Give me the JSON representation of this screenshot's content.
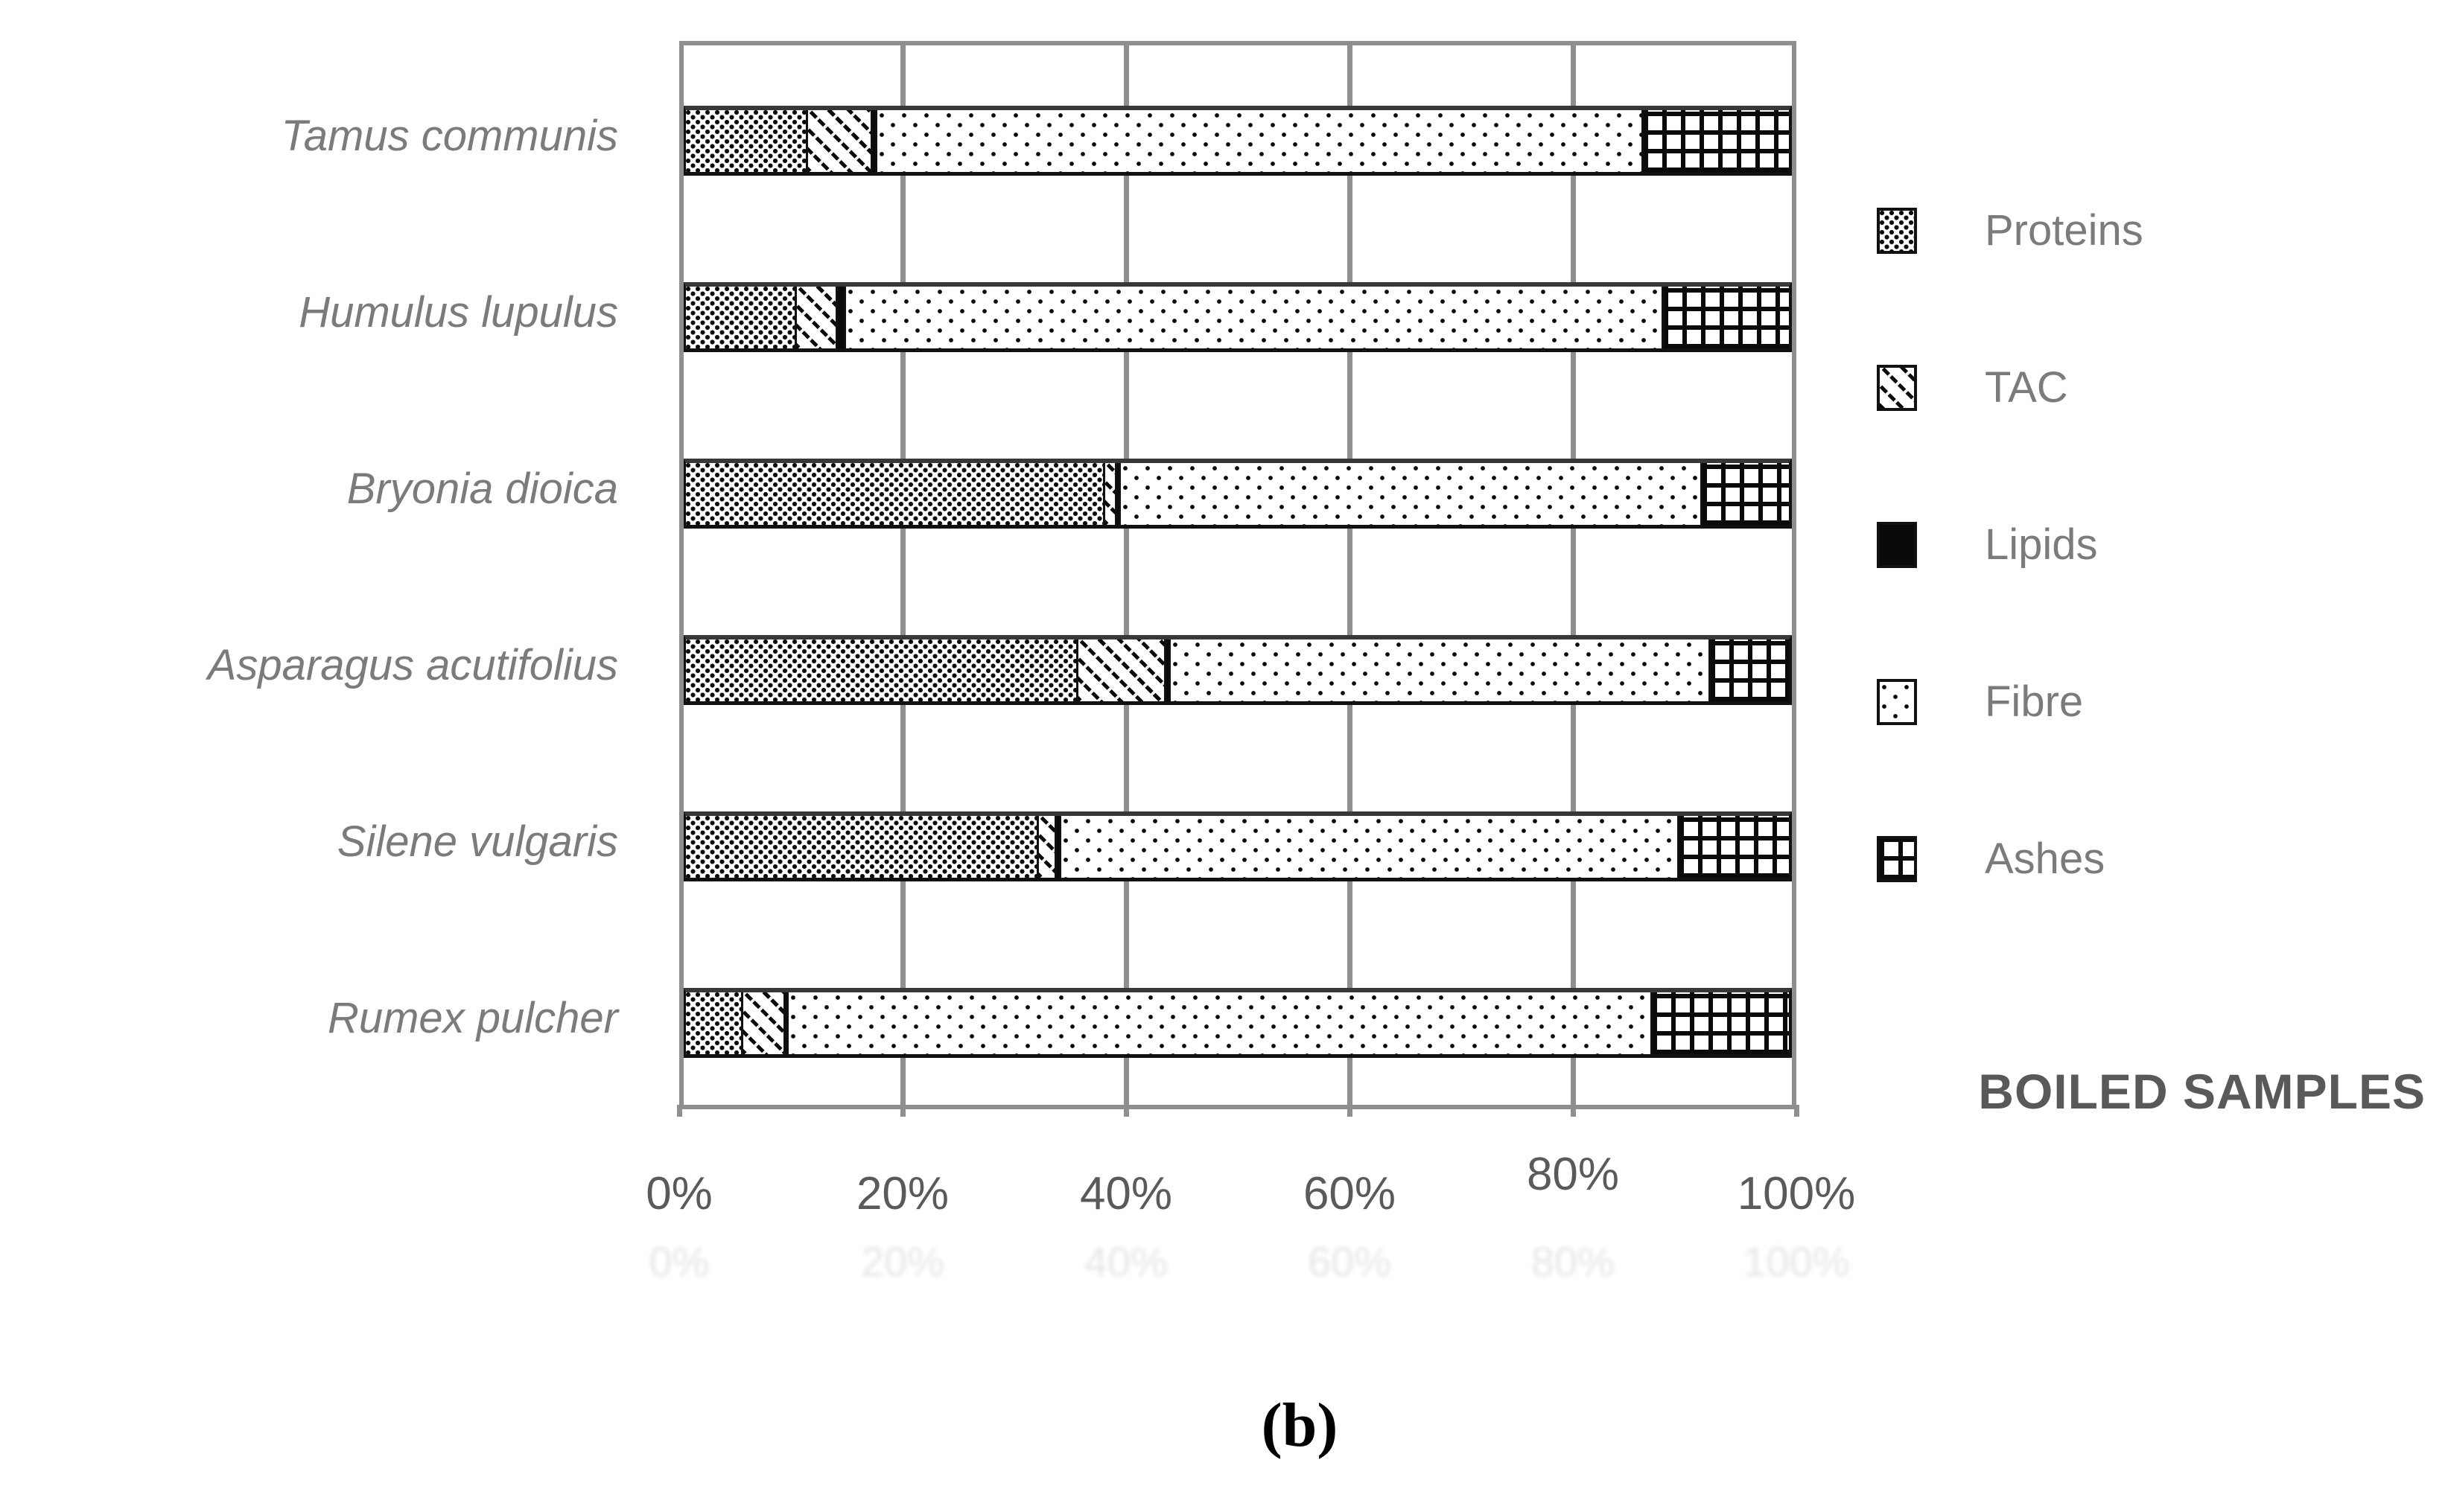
{
  "figure": {
    "caption": "(b)",
    "annotation": "BOILED SAMPLES"
  },
  "chart_data": {
    "type": "bar",
    "orientation": "horizontal-stacked",
    "title": "",
    "xlabel": "",
    "ylabel": "",
    "units": "%",
    "grid": "vertical-major",
    "categories": [
      "Tamus communis",
      "Humulus lupulus",
      "Bryonia dioica",
      "Asparagus acutifolius",
      "Silene vulgaris",
      "Rumex pulcher"
    ],
    "series": [
      {
        "name": "Proteins",
        "pattern": "dense-dots",
        "values": [
          10.7,
          9.7,
          37.3,
          34.9,
          31.4,
          4.9
        ]
      },
      {
        "name": "TAC",
        "pattern": "diagonal-hatch",
        "values": [
          5.8,
          3.7,
          1.1,
          7.9,
          1.6,
          3.8
        ]
      },
      {
        "name": "Lipids",
        "pattern": "solid-black",
        "values": [
          0.4,
          0.7,
          0.3,
          0.4,
          0.4,
          0.3
        ]
      },
      {
        "name": "Fibre",
        "pattern": "sparse-dots",
        "values": [
          68.6,
          73.2,
          52.1,
          48.3,
          55.3,
          77.3
        ]
      },
      {
        "name": "Ashes",
        "pattern": "grid",
        "values": [
          14.5,
          12.7,
          9.2,
          8.5,
          11.3,
          13.7
        ]
      }
    ],
    "x_axis": {
      "range": [
        0,
        100
      ],
      "tick_values": [
        0,
        20,
        40,
        60,
        80,
        100
      ],
      "ticks": [
        "0%",
        "20%",
        "40%",
        "60%",
        "80%",
        "100%"
      ]
    },
    "legend": {
      "position": "right",
      "entries": [
        "Proteins",
        "TAC",
        "Lipids",
        "Fibre",
        "Ashes"
      ]
    }
  },
  "colors": {
    "grid": "#8f8f8f",
    "bar_border": "#111111",
    "bar_top_border": "#383838",
    "pattern_ink": "#0a0a0a",
    "category_label": "#7b7b7b",
    "tick_label": "#5a5a5a",
    "legend_label": "#7b7b7b",
    "annotation": "#595959",
    "caption": "#000000",
    "background": "#ffffff"
  }
}
